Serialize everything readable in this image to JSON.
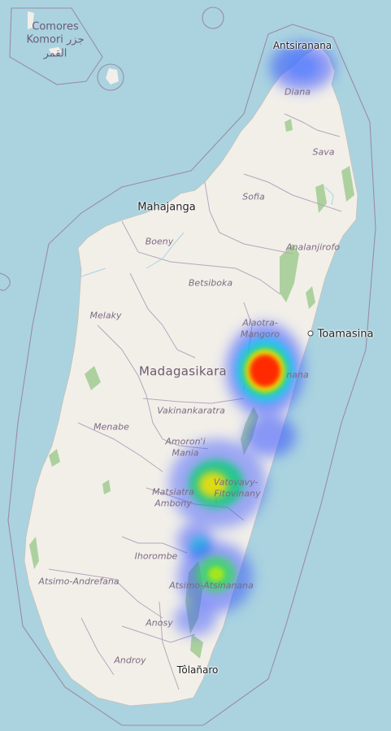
{
  "map": {
    "country_label": "Madagasikara",
    "comoros_label": [
      "Comores",
      "Komori جزر",
      "القمر"
    ],
    "cities": [
      {
        "key": "antsiranana",
        "name": "Antsiranana"
      },
      {
        "key": "mahajanga",
        "name": "Mahajanga"
      },
      {
        "key": "toamasina",
        "name": "Toamasina"
      },
      {
        "key": "tolanaro",
        "name": "Tôlañaro"
      }
    ],
    "regions": [
      {
        "key": "diana",
        "name": "Diana"
      },
      {
        "key": "sava",
        "name": "Sava"
      },
      {
        "key": "sofia",
        "name": "Sofia"
      },
      {
        "key": "analanjirofo",
        "name": "Analanjirofo"
      },
      {
        "key": "boeny",
        "name": "Boeny"
      },
      {
        "key": "betsiboka",
        "name": "Betsiboka"
      },
      {
        "key": "alaotra-1",
        "name": "Alaotra-"
      },
      {
        "key": "alaotra-2",
        "name": "Mangoro"
      },
      {
        "key": "atsinanana",
        "name": "nana"
      },
      {
        "key": "melaky",
        "name": "Melaky"
      },
      {
        "key": "vakinankaratra",
        "name": "Vakinankaratra"
      },
      {
        "key": "amoron-1",
        "name": "Amoron'i"
      },
      {
        "key": "amoron-2",
        "name": "Mania"
      },
      {
        "key": "menabe",
        "name": "Menabe"
      },
      {
        "key": "vatovavy-1",
        "name": "Vatovavy-"
      },
      {
        "key": "vatovavy-2",
        "name": "Fitovinany"
      },
      {
        "key": "matsiatra-1",
        "name": "Matsiatra"
      },
      {
        "key": "matsiatra-2",
        "name": "Ambony"
      },
      {
        "key": "ihorombe",
        "name": "Ihorombe"
      },
      {
        "key": "atsimo-andrefana",
        "name": "Atsimo-Andrefana"
      },
      {
        "key": "atsimo-atsinanana",
        "name": "Atsimo-Atsinanana"
      },
      {
        "key": "anosy",
        "name": "Anosy"
      },
      {
        "key": "androy",
        "name": "Androy"
      }
    ]
  },
  "heatmap": {
    "hotspots": [
      {
        "key": "antsiranana",
        "intensity": 0.3
      },
      {
        "key": "alaotra-mangoro",
        "intensity": 1.0
      },
      {
        "key": "atsinanana-south",
        "intensity": 0.3
      },
      {
        "key": "vatovavy-fitovinany",
        "intensity": 0.75
      },
      {
        "key": "matsiatra-east",
        "intensity": 0.4
      },
      {
        "key": "ihorombe-east",
        "intensity": 0.45
      },
      {
        "key": "atsimo-atsinanana",
        "intensity": 0.65
      },
      {
        "key": "anosy-north",
        "intensity": 0.3
      }
    ]
  },
  "colors": {
    "water": "#aad3df",
    "land": "#f2efe9",
    "forest": "#add19e",
    "admin_border": "#b5a7bb",
    "heat_low": "#3050ff",
    "heat_mid": "#00e070",
    "heat_high": "#ffee00",
    "heat_peak": "#ff0000"
  }
}
